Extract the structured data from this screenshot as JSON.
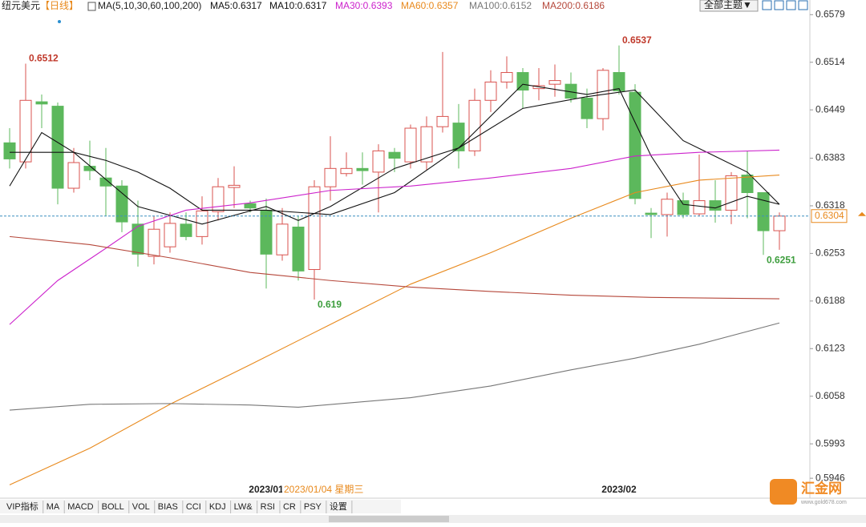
{
  "header": {
    "title": "纽元美元",
    "period": "【日线】",
    "ma_params": "MA(5,10,30,60,100,200)",
    "theme": "全部主题▼"
  },
  "toolbar": [
    "VIP指标",
    "MA",
    "MACD",
    "BOLL",
    "VOL",
    "BIAS",
    "CCI",
    "KDJ",
    "LW&",
    "RSI",
    "CR",
    "PSY",
    "设置"
  ],
  "logo": {
    "name": "汇金网",
    "url": "www.gold678.com"
  },
  "chart_data": {
    "type": "candlestick",
    "ylim": [
      0.5921,
      0.6599
    ],
    "yticks": [
      0.6579,
      0.6514,
      0.6449,
      0.6383,
      0.6318,
      0.6253,
      0.6188,
      0.6123,
      0.6058,
      0.5993,
      0.5946
    ],
    "up_color": "#d9534f",
    "down_color": "#5cb85c",
    "candles": {
      "open": [
        0.6404,
        0.6378,
        0.646,
        0.6454,
        0.6342,
        0.6372,
        0.6356,
        0.6345,
        0.6293,
        0.6249,
        0.6262,
        0.6293,
        0.6276,
        0.631,
        0.6343,
        0.6321,
        0.6312,
        0.6251,
        0.6289,
        0.6231,
        0.6344,
        0.6362,
        0.6369,
        0.6364,
        0.6391,
        0.6378,
        0.6378,
        0.6426,
        0.6431,
        0.6393,
        0.6462,
        0.6487,
        0.65,
        0.6478,
        0.6484,
        0.6484,
        0.6465,
        0.6437,
        0.65,
        0.6473,
        0.6308,
        0.6306,
        0.6325,
        0.6307,
        0.6325,
        0.6312,
        0.636,
        0.6336,
        0.6284
      ],
      "high": [
        0.6424,
        0.6512,
        0.647,
        0.6459,
        0.6397,
        0.6407,
        0.6397,
        0.6353,
        0.6325,
        0.6304,
        0.6309,
        0.6309,
        0.6331,
        0.6356,
        0.6372,
        0.6325,
        0.6328,
        0.6315,
        0.6304,
        0.6353,
        0.6413,
        0.6391,
        0.6391,
        0.6402,
        0.6397,
        0.6429,
        0.644,
        0.6528,
        0.6457,
        0.6478,
        0.6503,
        0.6522,
        0.6506,
        0.6506,
        0.6511,
        0.65,
        0.6478,
        0.6506,
        0.6537,
        0.6484,
        0.6315,
        0.6336,
        0.6336,
        0.6388,
        0.6353,
        0.6364,
        0.6393,
        0.6336,
        0.6309
      ],
      "low": [
        0.6369,
        0.6369,
        0.6424,
        0.632,
        0.6336,
        0.6353,
        0.6304,
        0.6282,
        0.6235,
        0.6238,
        0.6254,
        0.6271,
        0.6265,
        0.6298,
        0.6315,
        0.6309,
        0.6205,
        0.6243,
        0.6216,
        0.619,
        0.6325,
        0.6358,
        0.6347,
        0.6309,
        0.6364,
        0.6369,
        0.6367,
        0.6418,
        0.6369,
        0.6386,
        0.6446,
        0.6478,
        0.6451,
        0.6462,
        0.6467,
        0.6459,
        0.6424,
        0.6421,
        0.647,
        0.632,
        0.6274,
        0.6276,
        0.6301,
        0.6304,
        0.6295,
        0.6293,
        0.6301,
        0.6251,
        0.6258
      ],
      "close": [
        0.6382,
        0.6462,
        0.6457,
        0.6342,
        0.6377,
        0.6366,
        0.6345,
        0.6296,
        0.6252,
        0.6286,
        0.6294,
        0.6276,
        0.6311,
        0.6344,
        0.6346,
        0.6315,
        0.6252,
        0.6293,
        0.6229,
        0.6344,
        0.6369,
        0.6369,
        0.6366,
        0.6393,
        0.6383,
        0.6424,
        0.6426,
        0.644,
        0.6393,
        0.6462,
        0.6487,
        0.65,
        0.6476,
        0.6482,
        0.6489,
        0.6465,
        0.6437,
        0.6503,
        0.6475,
        0.6328,
        0.6306,
        0.6327,
        0.6306,
        0.6325,
        0.6312,
        0.6359,
        0.6336,
        0.6284,
        0.6304
      ]
    },
    "marked_high": [
      1,
      38
    ],
    "marked_low": [
      19,
      47
    ],
    "x_labels": [
      {
        "index": 16,
        "label": "2023/01"
      },
      {
        "index": 38,
        "label": "2023/02"
      }
    ],
    "crosshair_label": "2023/01/04 星期三",
    "series": [
      {
        "label": "MA5:0.6317",
        "color": "#111111",
        "x": [
          0,
          2,
          4,
          8,
          12,
          16,
          18,
          20,
          24,
          28,
          32,
          36,
          38,
          40,
          42,
          44,
          46,
          48
        ],
        "values": [
          0.6345,
          0.6418,
          0.6391,
          0.6317,
          0.6293,
          0.6317,
          0.6298,
          0.6317,
          0.6369,
          0.6397,
          0.6484,
          0.647,
          0.6478,
          0.6386,
          0.632,
          0.6315,
          0.6331,
          0.632
        ]
      },
      {
        "label": "MA10:0.6317",
        "color": "#111111",
        "x": [
          0,
          4,
          6,
          8,
          10,
          12,
          16,
          20,
          24,
          28,
          32,
          36,
          39,
          42,
          46,
          48
        ],
        "values": [
          0.6391,
          0.6391,
          0.638,
          0.6364,
          0.6342,
          0.6312,
          0.6312,
          0.6306,
          0.6336,
          0.6397,
          0.6451,
          0.6467,
          0.6476,
          0.6407,
          0.6364,
          0.632
        ]
      },
      {
        "label": "MA30:0.6393",
        "color": "#cc22cc",
        "x": [
          0,
          3,
          6,
          8,
          11,
          15,
          20,
          25,
          30,
          35,
          39,
          43,
          48
        ],
        "values": [
          0.6156,
          0.6216,
          0.626,
          0.629,
          0.6312,
          0.6322,
          0.6339,
          0.6345,
          0.6356,
          0.6369,
          0.6386,
          0.6391,
          0.6394
        ]
      },
      {
        "label": "MA60:0.6357",
        "color": "#e8891c",
        "x": [
          0,
          5,
          10,
          15,
          20,
          25,
          30,
          35,
          39,
          43,
          48
        ],
        "values": [
          0.5937,
          0.5987,
          0.6047,
          0.6101,
          0.6156,
          0.6211,
          0.6254,
          0.6301,
          0.6336,
          0.6353,
          0.636
        ]
      },
      {
        "label": "MA100:0.6152",
        "color": "#777777",
        "x": [
          0,
          5,
          10,
          15,
          18,
          25,
          30,
          35,
          39,
          43,
          48
        ],
        "values": [
          0.6039,
          0.6047,
          0.6048,
          0.6046,
          0.6043,
          0.6056,
          0.6072,
          0.6094,
          0.611,
          0.6129,
          0.6158
        ]
      },
      {
        "label": "MA200:0.6186",
        "color": "#b5473a",
        "x": [
          0,
          5,
          10,
          15,
          20,
          25,
          30,
          35,
          40,
          48
        ],
        "values": [
          0.6276,
          0.6265,
          0.6247,
          0.6227,
          0.6216,
          0.6207,
          0.6201,
          0.6196,
          0.6193,
          0.6191
        ]
      }
    ]
  }
}
